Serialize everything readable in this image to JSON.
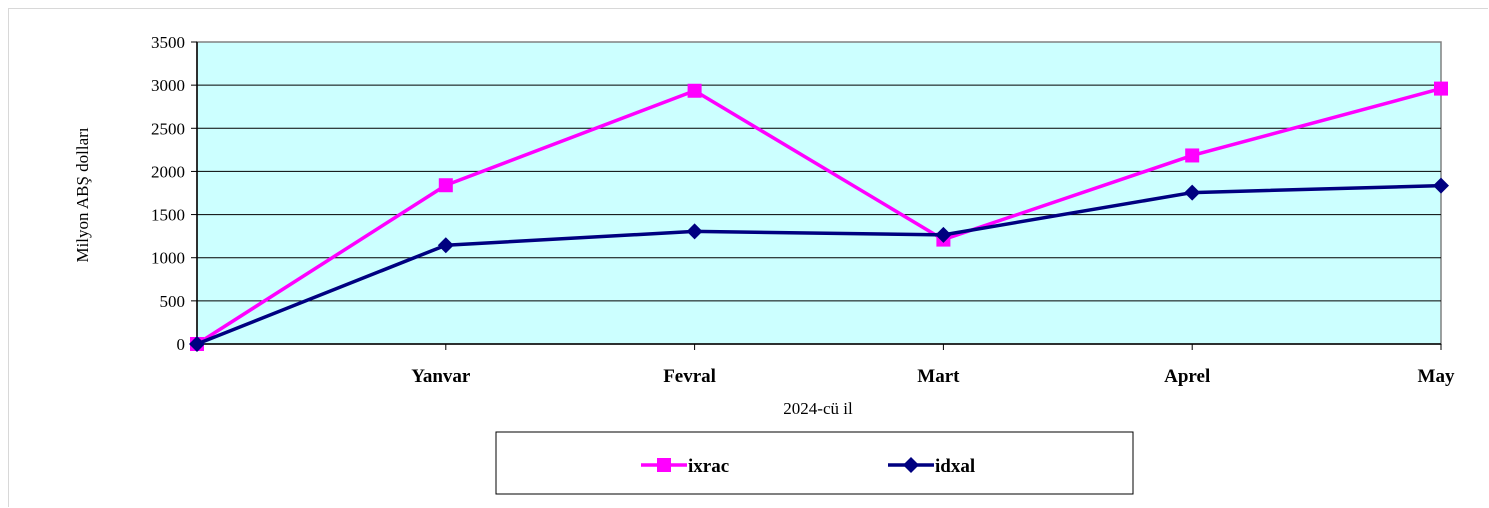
{
  "chart_data": {
    "type": "line",
    "categories": [
      "",
      "Yanvar",
      "Fevral",
      "Mart",
      "Aprel",
      "May"
    ],
    "series": [
      {
        "name": "ixrac",
        "color": "#ff00ff",
        "marker": "square",
        "values": [
          0,
          1840,
          2935,
          1210,
          2185,
          2960
        ]
      },
      {
        "name": "idxal",
        "color": "#000080",
        "marker": "diamond",
        "values": [
          0,
          1145,
          1305,
          1265,
          1755,
          1835
        ]
      }
    ],
    "y_ticks": [
      "0",
      "500",
      "1000",
      "1500",
      "2000",
      "2500",
      "3000",
      "3500"
    ],
    "ylim": [
      0,
      3500
    ],
    "xlabel": "2024-cü il",
    "ylabel": "Milyon ABŞ dolları",
    "plot_background": "#ccffff",
    "grid": true,
    "legend_position": "bottom"
  }
}
